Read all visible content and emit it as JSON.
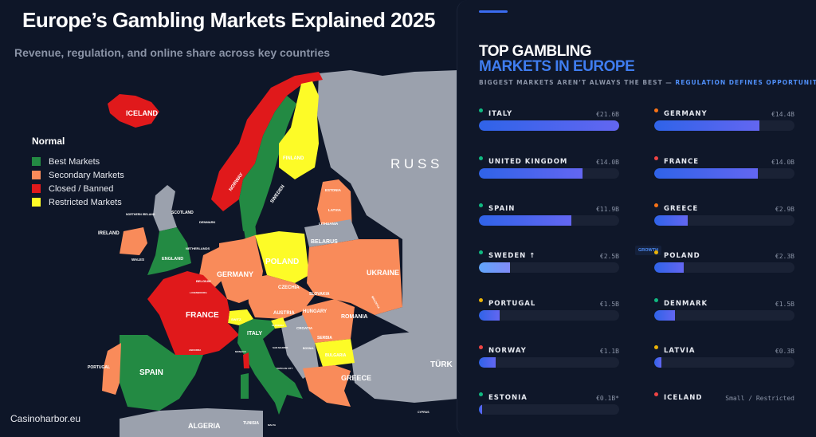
{
  "header": {
    "title": "Europe’s Gambling Markets Explained 2025",
    "subtitle": "Revenue, regulation, and online share across key countries"
  },
  "legend": {
    "heading": "Normal",
    "items": [
      {
        "label": "Best Markets",
        "color": "#238a43"
      },
      {
        "label": "Secondary Markets",
        "color": "#f98b5a"
      },
      {
        "label": "Closed / Banned",
        "color": "#e0191b"
      },
      {
        "label": "Restricted Markets",
        "color": "#fdfb27"
      }
    ]
  },
  "colors": {
    "best": "#238a43",
    "secondary": "#f98b5a",
    "closed": "#e0191b",
    "restricted": "#fdfb27",
    "other": "#9ba1ad",
    "sea": "#0e1628"
  },
  "map": {
    "labels": {
      "iceland": "ICELAND",
      "norway": "NORWAY",
      "sweden": "SWEDEN",
      "finland": "FINLAND",
      "russia": "R U S S",
      "estonia": "ESTONIA",
      "latvia": "LATVIA",
      "lithuania": "LITHUANIA",
      "scotland": "SCOTLAND",
      "northern_ireland": "NORTHERN IRELAND",
      "denmark": "DENMARK",
      "ireland": "IRELAND",
      "wales": "WALES",
      "england": "ENGLAND",
      "netherlands": "NETHERLANDS",
      "belarus": "BELARUS",
      "poland": "POLAND",
      "germany": "GERMANY",
      "belgium": "BELGIUM",
      "luxembourg": "LUXEMBOURG",
      "ukraine": "UKRAINE",
      "czechia": "CZECHIA",
      "slovakia": "SLOVAKIA",
      "moldova": "MOLDOVA",
      "france": "FRANCE",
      "switzerland": "SWITZ.",
      "austria": "AUSTRIA",
      "hungary": "HUNGARY",
      "romania": "ROMANIA",
      "slovenia": "SLOVENIA",
      "croatia": "CROATIA",
      "italy": "ITALY",
      "serbia": "SERBIA",
      "bosnia": "BOSNIA",
      "bulgaria": "BULGARIA",
      "andorra": "ANDORRA",
      "monaco": "MONACO",
      "san_marino": "SAN MARINO",
      "vatican": "VATICAN CITY",
      "portugal": "PORTUGAL",
      "spain": "SPAIN",
      "greece": "GREECE",
      "turkey": "TÜRK",
      "cyprus": "CYPRUS",
      "algeria": "ALGERIA",
      "tunisia": "TUNISIA",
      "malta": "MALTA"
    }
  },
  "brand": "Casinoharbor.eu",
  "panel": {
    "title_line1": "TOP GAMBLING",
    "title_line2": "MARKETS IN EUROPE",
    "tagline_main": "BIGGEST MARKETS AREN’T ALWAYS THE BEST — ",
    "tagline_accent": "REGULATION DEFINES OPPORTUNITY",
    "markets": [
      {
        "name": "ITALY",
        "value": "€21.6B",
        "status": "best",
        "dot": "#10b981",
        "fill_pct": 100
      },
      {
        "name": "GERMANY",
        "value": "€14.4B",
        "status": "secondary",
        "dot": "#f97316",
        "fill_pct": 75
      },
      {
        "name": "UNITED KINGDOM",
        "value": "€14.0B",
        "status": "best",
        "dot": "#10b981",
        "fill_pct": 74
      },
      {
        "name": "FRANCE",
        "value": "€14.0B",
        "status": "closed",
        "dot": "#ef4444",
        "fill_pct": 74
      },
      {
        "name": "SPAIN",
        "value": "€11.9B",
        "status": "best",
        "dot": "#10b981",
        "fill_pct": 66
      },
      {
        "name": "GREECE",
        "value": "€2.9B",
        "status": "secondary",
        "dot": "#f97316",
        "fill_pct": 24
      },
      {
        "name": "SWEDEN ↑",
        "value": "€2.5B",
        "status": "best",
        "dot": "#10b981",
        "fill_pct": 22,
        "badge": "GROWTH"
      },
      {
        "name": "POLAND",
        "value": "€2.3B",
        "status": "restricted",
        "dot": "#eab308",
        "fill_pct": 21
      },
      {
        "name": "PORTUGAL",
        "value": "€1.5B",
        "status": "restricted",
        "dot": "#eab308",
        "fill_pct": 15
      },
      {
        "name": "DENMARK",
        "value": "€1.5B",
        "status": "best",
        "dot": "#10b981",
        "fill_pct": 15
      },
      {
        "name": "NORWAY",
        "value": "€1.1B",
        "status": "closed",
        "dot": "#ef4444",
        "fill_pct": 12
      },
      {
        "name": "LATVIA",
        "value": "€0.3B",
        "status": "restricted",
        "dot": "#eab308",
        "fill_pct": 5
      },
      {
        "name": "ESTONIA",
        "value": "€0.1B*",
        "status": "best",
        "dot": "#10b981",
        "fill_pct": 2
      },
      {
        "name": "ICELAND",
        "value": "Small / Restricted",
        "status": "closed",
        "dot": "#ef4444"
      }
    ]
  }
}
